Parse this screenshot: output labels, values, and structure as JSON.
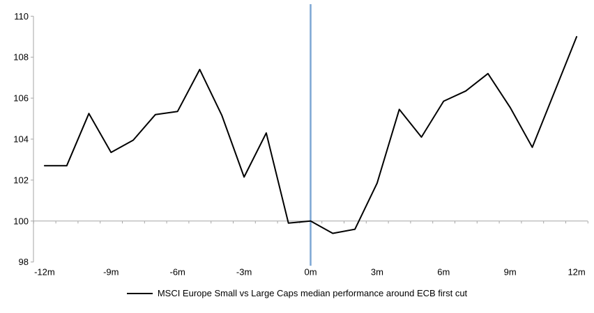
{
  "chart_data": {
    "type": "line",
    "title": "",
    "xlabel": "",
    "ylabel": "",
    "x_months": [
      -12,
      -11,
      -10,
      -9,
      -8,
      -7,
      -6,
      -5,
      -4,
      -3,
      -2,
      -1,
      0,
      1,
      2,
      3,
      4,
      5,
      6,
      7,
      8,
      9,
      10,
      11,
      12
    ],
    "series": [
      {
        "name": "MSCI Europe Small vs Large Caps median performance around ECB first cut",
        "values": [
          102.7,
          102.7,
          105.25,
          103.35,
          103.95,
          105.2,
          105.35,
          107.4,
          105.15,
          102.15,
          104.3,
          99.9,
          100.0,
          99.4,
          99.6,
          101.85,
          105.45,
          104.1,
          105.85,
          106.35,
          107.2,
          105.55,
          103.6,
          106.3,
          109.0
        ],
        "color": "#000000"
      }
    ],
    "ylim": [
      98,
      110
    ],
    "yticks": [
      98,
      100,
      102,
      104,
      106,
      108,
      110
    ],
    "ytick_labels": [
      "98",
      "100",
      "102",
      "104",
      "106",
      "108",
      "110"
    ],
    "xtick_months": [
      -12,
      -9,
      -6,
      -3,
      0,
      3,
      6,
      9,
      12
    ],
    "xtick_labels": [
      "-12m",
      "-9m",
      "-6m",
      "-3m",
      "0m",
      "3m",
      "6m",
      "9m",
      "12m"
    ],
    "baseline_value": 100,
    "event_line_month": 0,
    "grid": false,
    "legend_position": "bottom",
    "colors": {
      "series_line": "#000000",
      "event_line": "#7CA6D4",
      "axis": "#A6A6A6",
      "tick_text": "#000000"
    }
  },
  "legend": {
    "label": "MSCI Europe Small vs Large Caps median performance around ECB first cut"
  }
}
